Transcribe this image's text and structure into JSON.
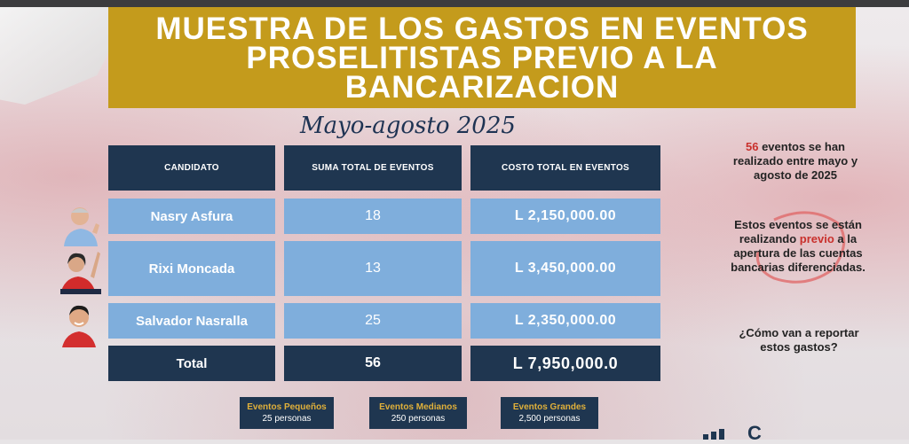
{
  "title": {
    "lines": [
      "MUESTRA DE LOS GASTOS EN EVENTOS",
      "PROSELITISTAS PREVIO A LA",
      "BANCARIZACION"
    ]
  },
  "subtitle": "Mayo-agosto 2025",
  "table": {
    "headers": [
      "CANDIDATO",
      "SUMA TOTAL DE EVENTOS",
      "COSTO TOTAL EN EVENTOS"
    ],
    "rows": [
      {
        "candidate": "Nasry Asfura",
        "events": "18",
        "cost": "L 2,150,000.00"
      },
      {
        "candidate": "Rixi Moncada",
        "events": "13",
        "cost": "L 3,450,000.00"
      },
      {
        "candidate": "Salvador Nasralla",
        "events": "25",
        "cost": "L 2,350,000.00"
      }
    ],
    "total": {
      "label": "Total",
      "events": "56",
      "cost": "L 7,950,000.0"
    }
  },
  "side": {
    "note1": {
      "highlight": "56",
      "text1": " eventos se han",
      "text2": "realizado entre mayo y",
      "text3": "agosto de 2025"
    },
    "note2": {
      "line1": "Estos eventos se están",
      "pre": "realizando ",
      "highlight": "previo",
      "post": " a la",
      "line3": "apertura de las cuentas",
      "line4": "bancarias diferenciadas."
    },
    "note3": {
      "line1": "¿Cómo van a reportar",
      "line2": "estos gastos?"
    }
  },
  "legend": [
    {
      "label": "Eventos Pequeños",
      "sub": "25 personas"
    },
    {
      "label": "Eventos Medianos",
      "sub": "250 personas"
    },
    {
      "label": "Eventos Grandes",
      "sub": "2,500 personas"
    }
  ],
  "footer": {
    "logo_text": "C"
  },
  "colors": {
    "title_bg": "#c49b1c",
    "header_bg": "#1f3650",
    "row_bg": "#7faedc",
    "accent_red": "#c9302c"
  }
}
